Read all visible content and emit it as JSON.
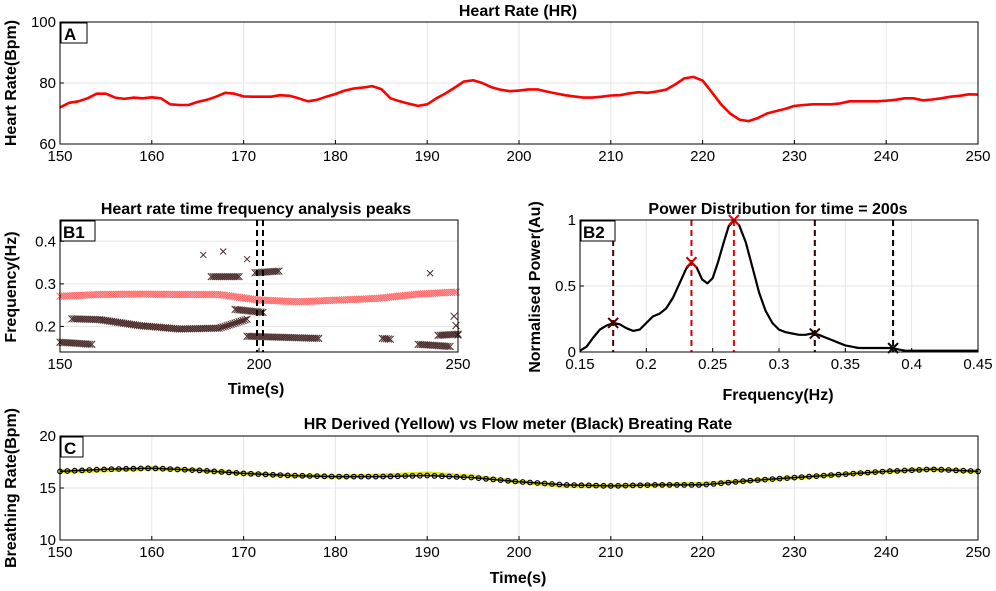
{
  "chart_data": [
    {
      "id": "A",
      "panel_label": "A",
      "type": "line",
      "title": "Heart Rate (HR)",
      "xlabel": "",
      "ylabel": "Heart Rate(Bpm)",
      "xlim": [
        150,
        250
      ],
      "ylim": [
        60,
        100
      ],
      "xticks": [
        150,
        160,
        170,
        180,
        190,
        200,
        210,
        220,
        230,
        240,
        250
      ],
      "yticks": [
        60,
        80,
        100
      ],
      "color": "#ff0000",
      "series": [
        {
          "name": "HR",
          "x": [
            150,
            151,
            152,
            153,
            154,
            155,
            156,
            157,
            158,
            159,
            160,
            161,
            162,
            163,
            164,
            165,
            166,
            167,
            168,
            169,
            170,
            171,
            172,
            173,
            174,
            175,
            176,
            177,
            178,
            179,
            180,
            181,
            182,
            183,
            184,
            185,
            186,
            187,
            188,
            189,
            190,
            191,
            192,
            193,
            194,
            195,
            196,
            197,
            198,
            199,
            200,
            201,
            202,
            203,
            204,
            205,
            206,
            207,
            208,
            209,
            210,
            211,
            212,
            213,
            214,
            215,
            216,
            217,
            218,
            219,
            220,
            221,
            222,
            223,
            224,
            225,
            226,
            227,
            228,
            229,
            230,
            231,
            232,
            233,
            234,
            235,
            236,
            237,
            238,
            239,
            240,
            241,
            242,
            243,
            244,
            245,
            246,
            247,
            248,
            249,
            250
          ],
          "y": [
            72,
            73.5,
            74,
            75,
            76.5,
            76.5,
            75.2,
            74.8,
            75.2,
            75,
            75.3,
            75,
            73,
            72.8,
            72.8,
            73.8,
            74.5,
            75.5,
            76.8,
            76.5,
            75.6,
            75.5,
            75.5,
            75.5,
            76,
            75.8,
            75,
            74,
            74.5,
            75.5,
            76.4,
            77.5,
            78.2,
            78.5,
            79,
            78,
            75,
            74,
            73.2,
            72.5,
            73,
            75,
            76.6,
            78.5,
            80.5,
            80.9,
            80,
            78.6,
            77.8,
            77.3,
            77.5,
            77.9,
            77.9,
            77.2,
            76.6,
            76,
            75.6,
            75.2,
            75.2,
            75.5,
            75.9,
            76,
            76.6,
            77,
            76.8,
            77.2,
            77.8,
            79.5,
            81.5,
            82,
            80.8,
            77,
            73,
            70,
            68,
            67.5,
            68.5,
            70,
            70.8,
            71.5,
            72.5,
            72.8,
            73,
            73,
            73,
            73.3,
            74,
            74,
            74,
            74,
            74.2,
            74.5,
            75,
            75,
            74.3,
            74.6,
            75,
            75.5,
            75.8,
            76.3,
            76.2
          ]
        }
      ]
    },
    {
      "id": "B1",
      "panel_label": "B1",
      "type": "scatter",
      "title": "Heart rate time frequency analysis peaks",
      "xlabel": "Time(s)",
      "ylabel": "Frequency(Hz)",
      "xlim": [
        150,
        250
      ],
      "ylim": [
        0.14,
        0.45
      ],
      "xticks": [
        150,
        200,
        250
      ],
      "yticks": [
        0.2,
        0.3,
        0.4
      ],
      "vlines": [
        {
          "x": 199.5,
          "color": "#000000"
        },
        {
          "x": 201,
          "color": "#000000"
        }
      ],
      "series": [
        {
          "name": "dominant peak",
          "color": "#ff6b6b",
          "points": [
            [
              150,
              0.271
            ],
            [
              160,
              0.275
            ],
            [
              170,
              0.276
            ],
            [
              180,
              0.275
            ],
            [
              190,
              0.275
            ],
            [
              200,
              0.262
            ],
            [
              210,
              0.258
            ],
            [
              220,
              0.262
            ],
            [
              230,
              0.266
            ],
            [
              240,
              0.276
            ],
            [
              250,
              0.281
            ]
          ]
        },
        {
          "name": "secondary peak",
          "color": "#4a2a2a",
          "points": [
            [
              153,
              0.218
            ],
            [
              160,
              0.216
            ],
            [
              170,
              0.202
            ],
            [
              180,
              0.194
            ],
            [
              190,
              0.196
            ],
            [
              197,
              0.217
            ]
          ]
        },
        {
          "name": "low band 1",
          "color": "#4a2a2a",
          "points": [
            [
              150,
              0.163
            ],
            [
              158,
              0.158
            ]
          ]
        },
        {
          "name": "low band 2",
          "color": "#4a2a2a",
          "points": [
            [
              197,
              0.177
            ],
            [
              215,
              0.172
            ]
          ]
        },
        {
          "name": "low band 3",
          "color": "#4a2a2a",
          "points": [
            [
              231,
              0.172
            ],
            [
              233,
              0.17
            ]
          ]
        },
        {
          "name": "low band 4",
          "color": "#4a2a2a",
          "points": [
            [
              240,
              0.158
            ],
            [
              248,
              0.153
            ]
          ]
        },
        {
          "name": "upper band 1",
          "color": "#4a2a2a",
          "points": [
            [
              188,
              0.317
            ],
            [
              195,
              0.317
            ]
          ]
        },
        {
          "name": "upper band 2",
          "color": "#4a2a2a",
          "points": [
            [
              199,
              0.326
            ],
            [
              205,
              0.33
            ]
          ]
        },
        {
          "name": "upper band 3",
          "color": "#4a2a2a",
          "points": [
            [
              194,
              0.24
            ],
            [
              201,
              0.233
            ]
          ]
        },
        {
          "name": "upper band 4",
          "color": "#4a2a2a",
          "points": [
            [
              249,
              0.224
            ],
            [
              250,
              0.18
            ]
          ]
        },
        {
          "name": "upper band 5",
          "color": "#4a2a2a",
          "points": [
            [
              245,
              0.179
            ],
            [
              250,
              0.182
            ]
          ]
        },
        {
          "name": "isolated",
          "color": "#4a2a2a",
          "points": [
            [
              186,
              0.368
            ],
            [
              191,
              0.376
            ],
            [
              197,
              0.358
            ],
            [
              243,
              0.325
            ]
          ]
        }
      ]
    },
    {
      "id": "B2",
      "panel_label": "B2",
      "type": "line",
      "title": "Power Distribution for time = 200s",
      "xlabel": "Frequency(Hz)",
      "ylabel": "Normalised Power(Au)",
      "xlim": [
        0.15,
        0.45
      ],
      "ylim": [
        0,
        1
      ],
      "xticks": [
        0.15,
        0.2,
        0.25,
        0.3,
        0.35,
        0.4,
        0.45
      ],
      "yticks": [
        0,
        0.5,
        1
      ],
      "series": [
        {
          "name": "power",
          "color": "#000000",
          "x": [
            0.15,
            0.155,
            0.16,
            0.165,
            0.17,
            0.175,
            0.18,
            0.185,
            0.19,
            0.195,
            0.2,
            0.205,
            0.21,
            0.215,
            0.22,
            0.225,
            0.23,
            0.234,
            0.238,
            0.242,
            0.246,
            0.25,
            0.254,
            0.258,
            0.262,
            0.266,
            0.27,
            0.275,
            0.28,
            0.285,
            0.29,
            0.295,
            0.3,
            0.305,
            0.31,
            0.315,
            0.32,
            0.325,
            0.33,
            0.335,
            0.34,
            0.345,
            0.35,
            0.355,
            0.36,
            0.365,
            0.37,
            0.375,
            0.38,
            0.385,
            0.39,
            0.395,
            0.4,
            0.41,
            0.42,
            0.43,
            0.44,
            0.45
          ],
          "y": [
            0.01,
            0.04,
            0.11,
            0.17,
            0.2,
            0.22,
            0.21,
            0.18,
            0.16,
            0.17,
            0.22,
            0.27,
            0.29,
            0.33,
            0.41,
            0.52,
            0.63,
            0.68,
            0.64,
            0.55,
            0.52,
            0.56,
            0.68,
            0.82,
            0.95,
            1.0,
            0.96,
            0.83,
            0.64,
            0.45,
            0.31,
            0.22,
            0.17,
            0.15,
            0.14,
            0.13,
            0.13,
            0.14,
            0.13,
            0.11,
            0.09,
            0.07,
            0.05,
            0.04,
            0.03,
            0.03,
            0.03,
            0.03,
            0.03,
            0.03,
            0.02,
            0.01,
            0.01,
            0.01,
            0.01,
            0.01,
            0.01,
            0.01
          ]
        }
      ],
      "peaks": [
        {
          "x": 0.175,
          "y": 0.22,
          "color": "#4a0000"
        },
        {
          "x": 0.234,
          "y": 0.68,
          "color": "#cc0000"
        },
        {
          "x": 0.266,
          "y": 1.0,
          "color": "#ee0000"
        },
        {
          "x": 0.327,
          "y": 0.14,
          "color": "#2a0000"
        },
        {
          "x": 0.386,
          "y": 0.03,
          "color": "#000000"
        }
      ]
    },
    {
      "id": "C",
      "panel_label": "C",
      "type": "line",
      "title": "HR Derived  (Yellow) vs Flow meter (Black) Breating Rate",
      "xlabel": "Time(s)",
      "ylabel": "Breathing Rate(Bpm)",
      "xlim": [
        150,
        250
      ],
      "ylim": [
        10,
        20
      ],
      "xticks": [
        150,
        160,
        170,
        180,
        190,
        200,
        210,
        220,
        230,
        240,
        250
      ],
      "yticks": [
        10,
        15,
        20
      ],
      "series": [
        {
          "name": "HR Derived",
          "color": "#e6e600",
          "x": [
            150,
            155,
            160,
            165,
            170,
            175,
            180,
            185,
            190,
            195,
            200,
            205,
            210,
            215,
            220,
            225,
            230,
            235,
            240,
            245,
            250
          ],
          "y": [
            16.6,
            16.7,
            16.9,
            16.7,
            16.4,
            16.2,
            16.1,
            16.2,
            16.4,
            16.1,
            15.6,
            15.2,
            15.2,
            15.3,
            15.4,
            15.7,
            16.0,
            16.3,
            16.6,
            16.8,
            16.6
          ]
        },
        {
          "name": "Flow meter",
          "color": "#000000",
          "x": [
            150,
            155,
            160,
            165,
            170,
            175,
            180,
            185,
            190,
            195,
            200,
            205,
            210,
            215,
            220,
            225,
            230,
            235,
            240,
            245,
            250
          ],
          "y": [
            16.6,
            16.8,
            16.9,
            16.7,
            16.4,
            16.2,
            16.1,
            16.1,
            16.2,
            16.0,
            15.6,
            15.3,
            15.2,
            15.3,
            15.3,
            15.7,
            16.0,
            16.3,
            16.6,
            16.8,
            16.6
          ]
        }
      ]
    }
  ]
}
